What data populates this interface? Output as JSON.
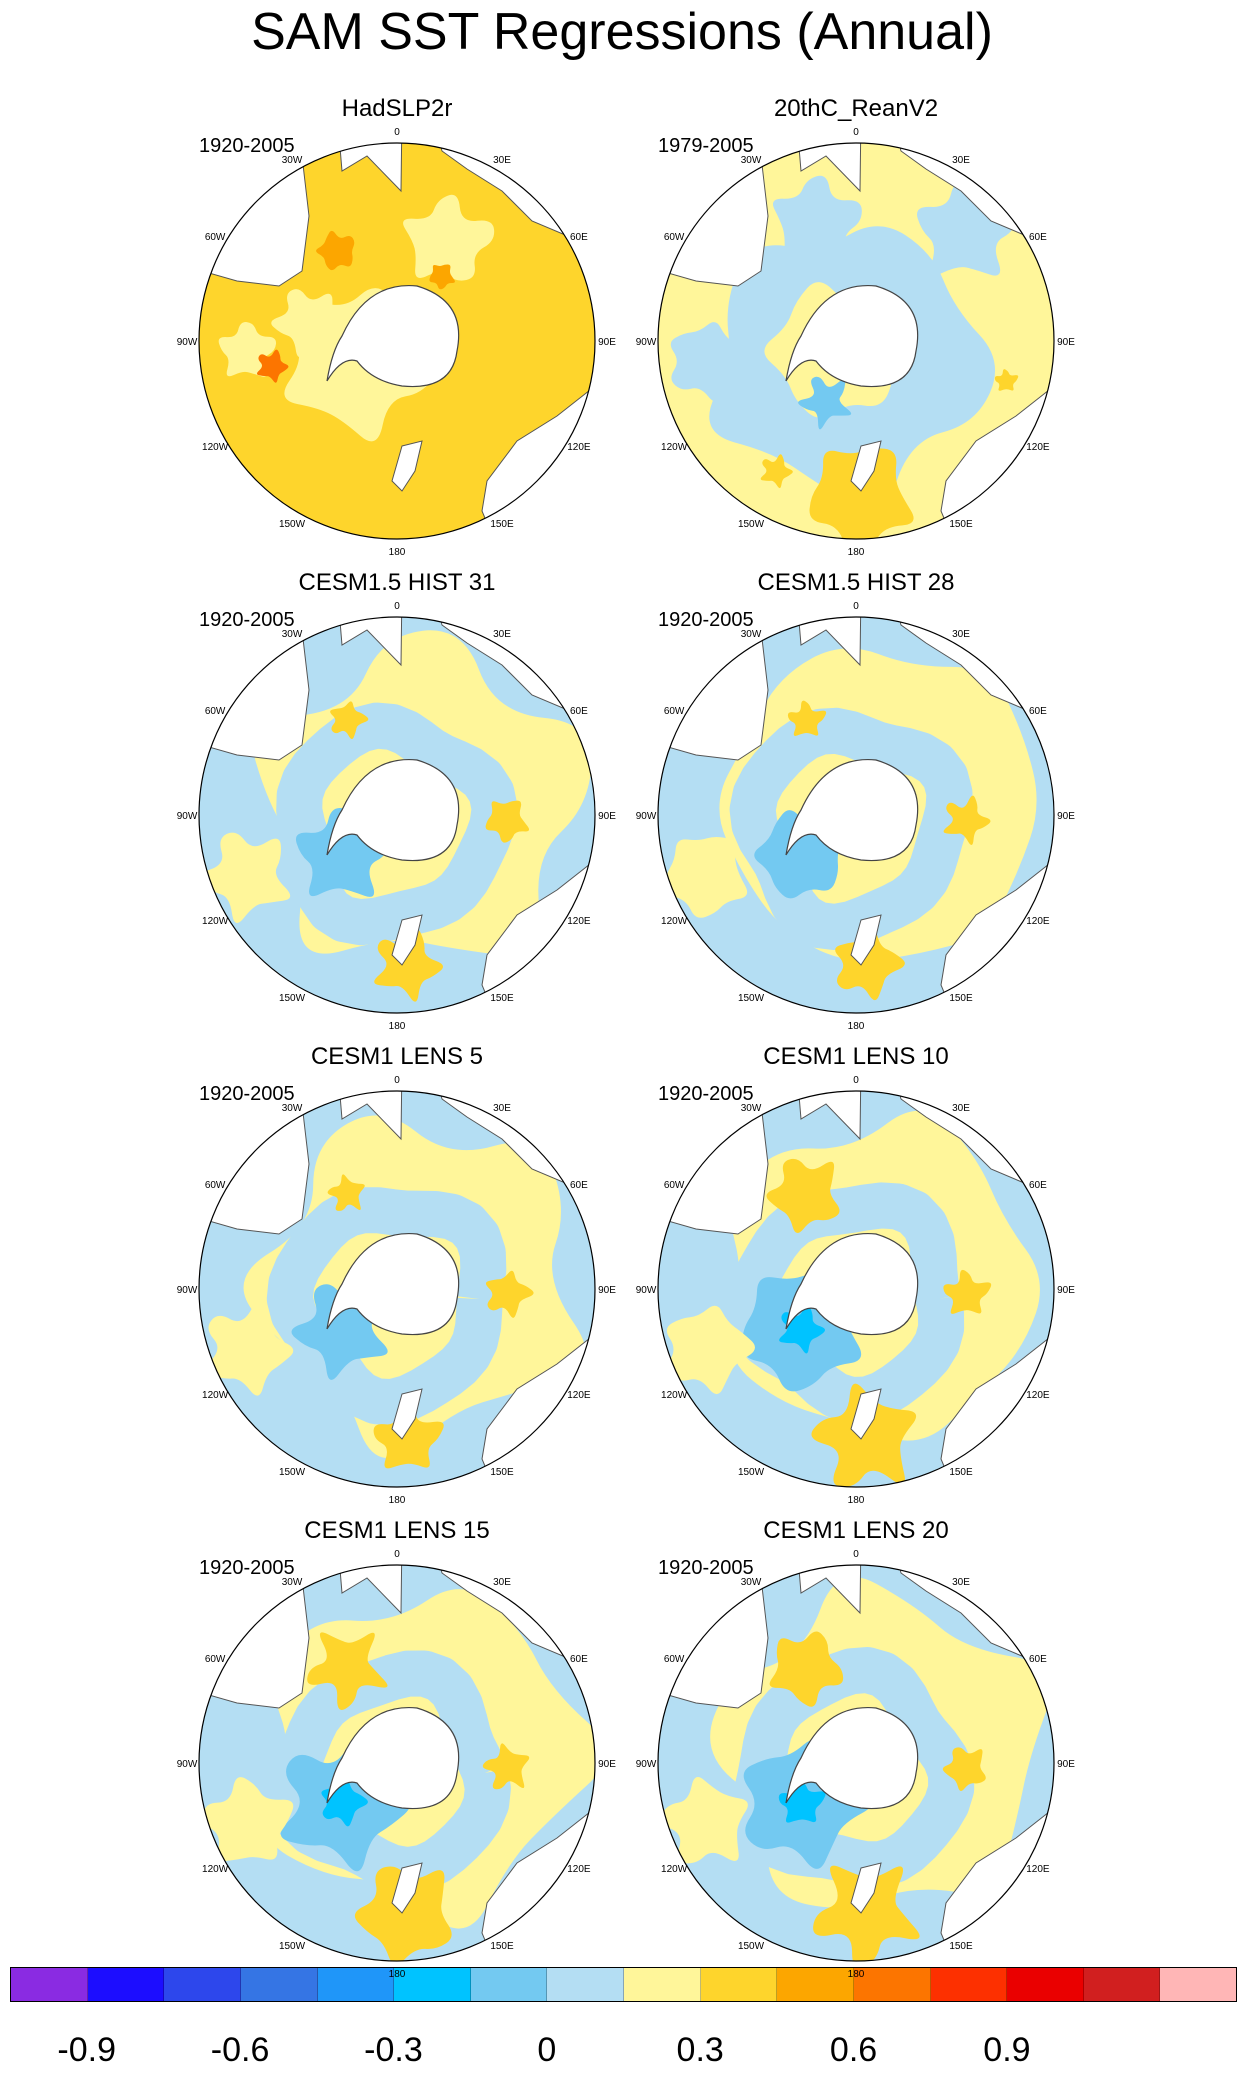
{
  "title": "SAM SST Regressions (Annual)",
  "lon_labels": [
    "0",
    "30E",
    "60E",
    "90E",
    "120E",
    "150E",
    "180",
    "150W",
    "120W",
    "90W",
    "60W",
    "30W"
  ],
  "panels": [
    {
      "id": "hadslp2r",
      "title": "HadSLP2r",
      "period": "1920-2005",
      "pattern": "positive"
    },
    {
      "id": "20thc-reanv2",
      "title": "20thC_ReanV2",
      "period": "1979-2005",
      "pattern": "mixed"
    },
    {
      "id": "cesm15-hist-31",
      "title": "CESM1.5 HIST 31",
      "period": "1920-2005",
      "pattern": "ring"
    },
    {
      "id": "cesm15-hist-28",
      "title": "CESM1.5 HIST 28",
      "period": "1920-2005",
      "pattern": "ring"
    },
    {
      "id": "cesm1-lens-5",
      "title": "CESM1 LENS 5",
      "period": "1920-2005",
      "pattern": "ring"
    },
    {
      "id": "cesm1-lens-10",
      "title": "CESM1 LENS 10",
      "period": "1920-2005",
      "pattern": "ring-strong"
    },
    {
      "id": "cesm1-lens-15",
      "title": "CESM1 LENS 15",
      "period": "1920-2005",
      "pattern": "ring-strong"
    },
    {
      "id": "cesm1-lens-20",
      "title": "CESM1 LENS 20",
      "period": "1920-2005",
      "pattern": "ring-strong"
    }
  ],
  "colorbar": {
    "colors": [
      "#8a2be2",
      "#1c0dff",
      "#2d47ec",
      "#3575e4",
      "#1f96f9",
      "#00c3ff",
      "#73c9f1",
      "#b4def3",
      "#fff69a",
      "#fed52c",
      "#fca600",
      "#fc7500",
      "#fd3000",
      "#ea0000",
      "#d11f1f",
      "#ffb6b6"
    ],
    "tick_labels": [
      "-0.9",
      "-0.6",
      "-0.3",
      "0",
      "0.3",
      "0.6",
      "0.9"
    ]
  }
}
